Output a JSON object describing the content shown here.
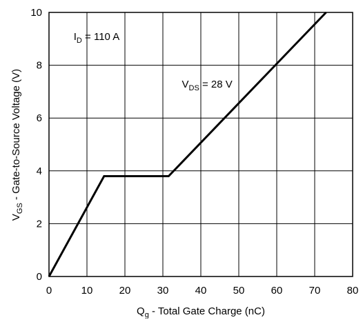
{
  "chart_data": {
    "type": "line",
    "xlabel": {
      "main": "Q",
      "sub": "g",
      "rest": " - Total Gate Charge (nC)"
    },
    "ylabel": {
      "main": "V",
      "sub": "GS",
      "rest": " - Gate-to-Source Voltage (V)"
    },
    "xlim": [
      0,
      80
    ],
    "ylim": [
      0,
      10
    ],
    "xticks": [
      0,
      10,
      20,
      30,
      40,
      50,
      60,
      70,
      80
    ],
    "yticks": [
      0,
      2,
      4,
      6,
      8,
      10
    ],
    "grid": true,
    "line_color": "#000000",
    "series": [
      {
        "x": [
          0,
          14.5,
          31.5,
          73
        ],
        "y": [
          0,
          3.8,
          3.8,
          10
        ]
      }
    ],
    "annotations": [
      {
        "main": "I",
        "sub": "D",
        "rest": " = 110 A",
        "x": 6.5,
        "y": 8.95
      },
      {
        "main": "V",
        "sub": "DS",
        "rest": " = 28 V",
        "x": 35,
        "y": 7.15
      }
    ]
  }
}
